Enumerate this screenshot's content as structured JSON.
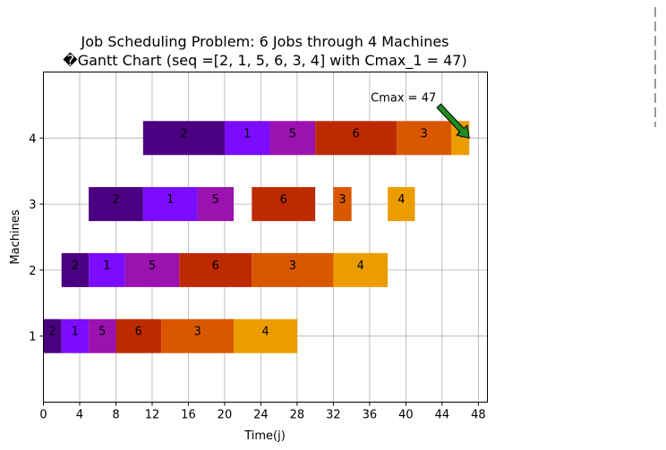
{
  "chart_data": {
    "type": "gantt",
    "title_line1": "Job Scheduling Problem: 6 Jobs through 4 Machines",
    "title_line2": "�Gantt Chart (seq =[2, 1, 5, 6, 3, 4] with Cmax_1 = 47)",
    "xlabel": "Time(j)",
    "ylabel": "Machines",
    "xlim": [
      0,
      49
    ],
    "ylim": [
      0,
      5
    ],
    "x_ticks": [
      0,
      4,
      8,
      12,
      16,
      20,
      24,
      28,
      32,
      36,
      40,
      44,
      48
    ],
    "y_ticks": [
      1,
      2,
      3,
      4
    ],
    "grid": true,
    "annotation": {
      "text": "Cmax = 47",
      "x": 47,
      "y": 4,
      "arrow_color": "#1e8c1e"
    },
    "job_colors": {
      "2": "#4b0082",
      "1": "#7b0cff",
      "5": "#9b12b0",
      "6": "#bd2a00",
      "3": "#d95700",
      "4": "#eb9d00"
    },
    "bars": [
      {
        "machine": 1,
        "job": "2",
        "start": 0,
        "end": 2
      },
      {
        "machine": 1,
        "job": "1",
        "start": 2,
        "end": 5
      },
      {
        "machine": 1,
        "job": "5",
        "start": 5,
        "end": 8
      },
      {
        "machine": 1,
        "job": "6",
        "start": 8,
        "end": 13
      },
      {
        "machine": 1,
        "job": "3",
        "start": 13,
        "end": 21
      },
      {
        "machine": 1,
        "job": "4",
        "start": 21,
        "end": 28
      },
      {
        "machine": 2,
        "job": "2",
        "start": 2,
        "end": 5
      },
      {
        "machine": 2,
        "job": "1",
        "start": 5,
        "end": 9
      },
      {
        "machine": 2,
        "job": "5",
        "start": 9,
        "end": 15
      },
      {
        "machine": 2,
        "job": "6",
        "start": 15,
        "end": 23
      },
      {
        "machine": 2,
        "job": "3",
        "start": 23,
        "end": 32
      },
      {
        "machine": 2,
        "job": "4",
        "start": 32,
        "end": 38
      },
      {
        "machine": 3,
        "job": "2",
        "start": 5,
        "end": 11
      },
      {
        "machine": 3,
        "job": "1",
        "start": 11,
        "end": 17
      },
      {
        "machine": 3,
        "job": "5",
        "start": 17,
        "end": 21
      },
      {
        "machine": 3,
        "job": "6",
        "start": 23,
        "end": 30
      },
      {
        "machine": 3,
        "job": "3",
        "start": 32,
        "end": 34
      },
      {
        "machine": 3,
        "job": "4",
        "start": 38,
        "end": 41
      },
      {
        "machine": 4,
        "job": "2",
        "start": 11,
        "end": 20
      },
      {
        "machine": 4,
        "job": "1",
        "start": 20,
        "end": 25
      },
      {
        "machine": 4,
        "job": "5",
        "start": 25,
        "end": 30
      },
      {
        "machine": 4,
        "job": "6",
        "start": 30,
        "end": 39
      },
      {
        "machine": 4,
        "job": "3",
        "start": 39,
        "end": 45
      },
      {
        "machine": 4,
        "job": "4",
        "start": 45,
        "end": 47
      }
    ]
  }
}
